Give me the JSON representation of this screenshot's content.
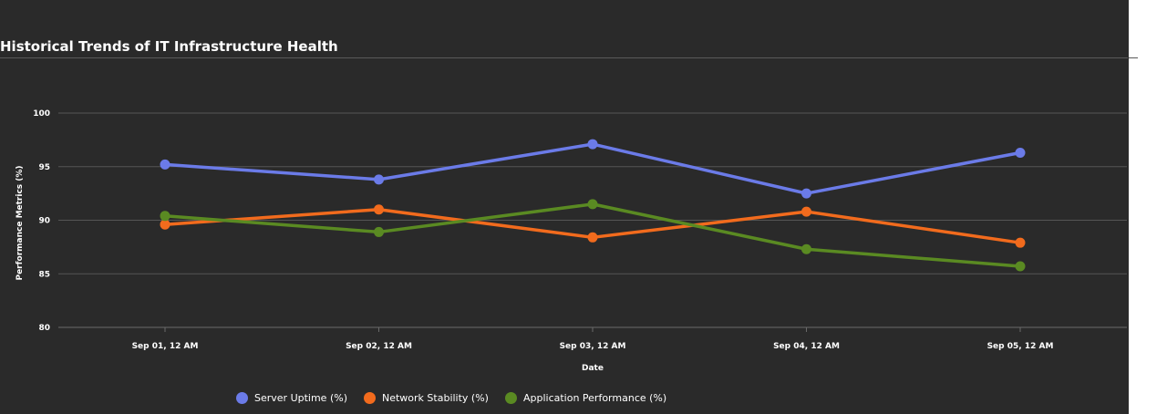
{
  "chart_data": {
    "type": "line",
    "title": "Historical Trends of IT Infrastructure Health",
    "xlabel": "Date",
    "ylabel": "Performance Metrics (%)",
    "ylim": [
      80,
      100
    ],
    "y_ticks": [
      80,
      85,
      90,
      95,
      100
    ],
    "y_tick_labels": [
      "80",
      "85",
      "90",
      "95",
      "100"
    ],
    "grid": "horizontal",
    "legend_position": "bottom",
    "categories": [
      "Sep 01, 12 AM",
      "Sep 02, 12 AM",
      "Sep 03, 12 AM",
      "Sep 04, 12 AM",
      "Sep 05, 12 AM"
    ],
    "series": [
      {
        "name": "Server Uptime (%)",
        "color": "#6b7be8",
        "values": [
          95.2,
          93.8,
          97.1,
          92.5,
          96.3
        ]
      },
      {
        "name": "Network Stability (%)",
        "color": "#f26b1d",
        "values": [
          89.6,
          91.0,
          88.4,
          90.8,
          87.9
        ]
      },
      {
        "name": "Application Performance (%)",
        "color": "#5a8a22",
        "values": [
          90.4,
          88.9,
          91.5,
          87.3,
          85.7
        ]
      }
    ]
  }
}
